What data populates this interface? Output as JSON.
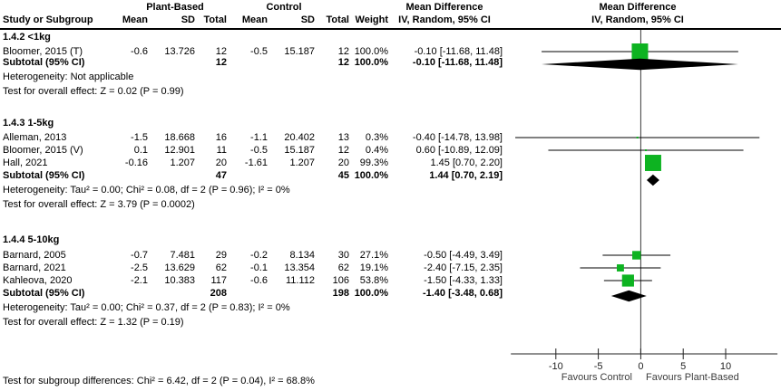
{
  "header": {
    "plant_based": "Plant-Based",
    "control": "Control",
    "study_col": "Study or Subgroup",
    "mean": "Mean",
    "sd": "SD",
    "total": "Total",
    "weight": "Weight",
    "md": "Mean Difference",
    "method": "IV, Random, 95% CI"
  },
  "colors": {
    "square": "#0db321",
    "diamond": "#000000",
    "line": "#000000",
    "axis": "#222222",
    "favours_text": "#3d3d3d"
  },
  "chart_data": {
    "type": "scatter",
    "variant": "forest-plot",
    "effect_measure": "Mean Difference, IV, Random, 95% CI",
    "axis": {
      "ticks": [
        -10,
        -5,
        0,
        5,
        10
      ],
      "xlim": [
        -15.3,
        16.1
      ],
      "favours_left": "Favours Control",
      "favours_right": "Favours Plant-Based"
    },
    "groups": [
      {
        "title": "1.4.2 <1kg",
        "rows": [
          {
            "study": "Bloomer, 2015 (T)",
            "mean_pb": "-0.6",
            "sd_pb": "13.726",
            "total_pb": "12",
            "mean_c": "-0.5",
            "sd_c": "15.187",
            "total_c": "12",
            "weight": "100.0%",
            "ci": "-0.10 [-11.68, 11.48]",
            "est": -0.1,
            "lo": -11.68,
            "hi": 11.48,
            "weight_pct": 100.0
          }
        ],
        "subtotal": {
          "label": "Subtotal (95% CI)",
          "total_pb": "12",
          "total_c": "12",
          "weight": "100.0%",
          "ci": "-0.10 [-11.68, 11.48]",
          "est": -0.1,
          "lo": -11.68,
          "hi": 11.48
        },
        "het": "Heterogeneity: Not applicable",
        "overall": "Test for overall effect: Z = 0.02 (P = 0.99)"
      },
      {
        "title": "1.4.3 1-5kg",
        "rows": [
          {
            "study": "Alleman, 2013",
            "mean_pb": "-1.5",
            "sd_pb": "18.668",
            "total_pb": "16",
            "mean_c": "-1.1",
            "sd_c": "20.402",
            "total_c": "13",
            "weight": "0.3%",
            "ci": "-0.40 [-14.78, 13.98]",
            "est": -0.4,
            "lo": -14.78,
            "hi": 13.98,
            "weight_pct": 0.3
          },
          {
            "study": "Bloomer, 2015 (V)",
            "mean_pb": "0.1",
            "sd_pb": "12.901",
            "total_pb": "11",
            "mean_c": "-0.5",
            "sd_c": "15.187",
            "total_c": "12",
            "weight": "0.4%",
            "ci": "0.60 [-10.89, 12.09]",
            "est": 0.6,
            "lo": -10.89,
            "hi": 12.09,
            "weight_pct": 0.4
          },
          {
            "study": "Hall, 2021",
            "mean_pb": "-0.16",
            "sd_pb": "1.207",
            "total_pb": "20",
            "mean_c": "-1.61",
            "sd_c": "1.207",
            "total_c": "20",
            "weight": "99.3%",
            "ci": "1.45 [0.70, 2.20]",
            "est": 1.45,
            "lo": 0.7,
            "hi": 2.2,
            "weight_pct": 99.3
          }
        ],
        "subtotal": {
          "label": "Subtotal (95% CI)",
          "total_pb": "47",
          "total_c": "45",
          "weight": "100.0%",
          "ci": "1.44 [0.70, 2.19]",
          "est": 1.44,
          "lo": 0.7,
          "hi": 2.19
        },
        "het": "Heterogeneity: Tau² = 0.00; Chi² = 0.08, df = 2 (P = 0.96); I² = 0%",
        "overall": "Test for overall effect: Z = 3.79 (P = 0.0002)"
      },
      {
        "title": "1.4.4 5-10kg",
        "rows": [
          {
            "study": "Barnard, 2005",
            "mean_pb": "-0.7",
            "sd_pb": "7.481",
            "total_pb": "29",
            "mean_c": "-0.2",
            "sd_c": "8.134",
            "total_c": "30",
            "weight": "27.1%",
            "ci": "-0.50 [-4.49, 3.49]",
            "est": -0.5,
            "lo": -4.49,
            "hi": 3.49,
            "weight_pct": 27.1
          },
          {
            "study": "Barnard, 2021",
            "mean_pb": "-2.5",
            "sd_pb": "13.629",
            "total_pb": "62",
            "mean_c": "-0.1",
            "sd_c": "13.354",
            "total_c": "62",
            "weight": "19.1%",
            "ci": "-2.40 [-7.15, 2.35]",
            "est": -2.4,
            "lo": -7.15,
            "hi": 2.35,
            "weight_pct": 19.1
          },
          {
            "study": "Kahleova, 2020",
            "mean_pb": "-2.1",
            "sd_pb": "10.383",
            "total_pb": "117",
            "mean_c": "-0.6",
            "sd_c": "11.112",
            "total_c": "106",
            "weight": "53.8%",
            "ci": "-1.50 [-4.33, 1.33]",
            "est": -1.5,
            "lo": -4.33,
            "hi": 1.33,
            "weight_pct": 53.8
          }
        ],
        "subtotal": {
          "label": "Subtotal (95% CI)",
          "total_pb": "208",
          "total_c": "198",
          "weight": "100.0%",
          "ci": "-1.40 [-3.48, 0.68]",
          "est": -1.4,
          "lo": -3.48,
          "hi": 0.68
        },
        "het": "Heterogeneity: Tau² = 0.00; Chi² = 0.37, df = 2 (P = 0.83); I² = 0%",
        "overall": "Test for overall effect: Z = 1.32 (P = 0.19)"
      }
    ]
  },
  "footer": {
    "subgroup_test": "Test for subgroup differences: Chi² = 6.42, df = 2 (P = 0.04), I² = 68.8%"
  }
}
